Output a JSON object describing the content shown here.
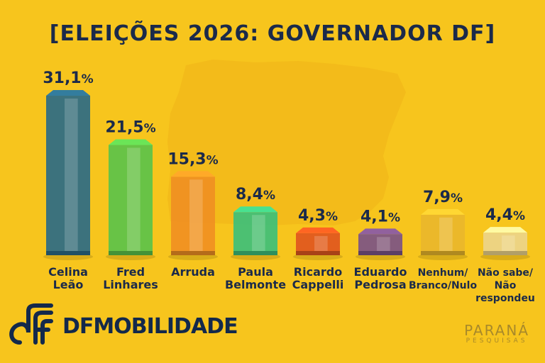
{
  "title": "[ELEIÇÕES 2026: GOVERNADOR DF]",
  "brand": {
    "name": "DFMOBILIDADE"
  },
  "source": {
    "name": "PARANÁ",
    "sub": "PESQUISAS"
  },
  "colors": {
    "background": "#f7c51d",
    "title": "#1b2a4a",
    "bars": [
      "#2b6a86",
      "#5bc24a",
      "#f08f22",
      "#3dbf7a",
      "#e0561e",
      "#7b5286",
      "#e9b62b",
      "#ecd48a"
    ]
  },
  "chart_data": {
    "type": "bar",
    "title": "[ELEIÇÕES 2026: GOVERNADOR DF]",
    "categories": [
      [
        "Celina",
        "Leão"
      ],
      [
        "Fred",
        "Linhares"
      ],
      [
        "Arruda"
      ],
      [
        "Paula",
        "Belmonte"
      ],
      [
        "Ricardo",
        "Cappelli"
      ],
      [
        "Eduardo",
        "Pedrosa"
      ],
      [
        "Nenhum/",
        "Branco/Nulo"
      ],
      [
        "Não sabe/",
        "Não",
        "respondeu"
      ]
    ],
    "values": [
      31.1,
      21.5,
      15.3,
      8.4,
      4.3,
      4.1,
      7.9,
      4.4
    ],
    "value_labels": [
      "31,1",
      "21,5",
      "15,3",
      "8,4",
      "4,3",
      "4,1",
      "7,9",
      "4,4"
    ],
    "unit": "%",
    "ylim": [
      0,
      35
    ]
  }
}
